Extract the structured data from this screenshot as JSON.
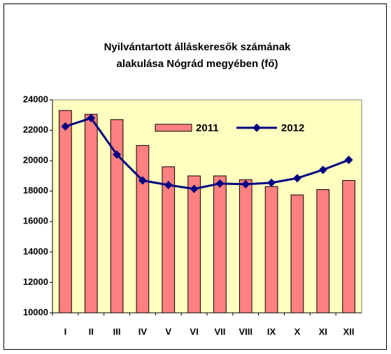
{
  "chart_data": {
    "type": "bar",
    "title": [
      "Nyilvántartott álláskeresők számának",
      "alakulása Nógrád megyében (fő)"
    ],
    "categories": [
      "I",
      "II",
      "III",
      "IV",
      "V",
      "VI",
      "VII",
      "VIII",
      "IX",
      "X",
      "XI",
      "XII"
    ],
    "series": [
      {
        "name": "2011",
        "type": "bar",
        "color": "#ff8080",
        "values": [
          23300,
          23050,
          22700,
          21000,
          19600,
          19000,
          19000,
          18750,
          18300,
          17750,
          18100,
          18700
        ]
      },
      {
        "name": "2012",
        "type": "line",
        "color": "#000080",
        "values": [
          22250,
          22800,
          20400,
          18700,
          18400,
          18150,
          18500,
          18450,
          18550,
          18850,
          19400,
          20050
        ]
      }
    ],
    "ylim": [
      10000,
      24000
    ],
    "yticks": [
      10000,
      12000,
      14000,
      16000,
      18000,
      20000,
      22000,
      24000
    ],
    "grid": false,
    "plot_background": "#ffffc0",
    "legend": "top"
  }
}
